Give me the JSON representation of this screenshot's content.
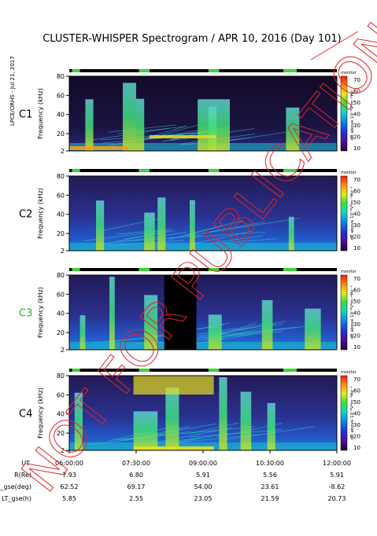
{
  "chart_data": {
    "type": "heatmap",
    "title": "CLUSTER-WHISPER Spectrogram / APR 10, 2016 (Day 101)",
    "side_label": "LPCE/ORHS - Jul 21, 2017",
    "watermark": "NOT FOR PUBLICATION",
    "xlabel": "UT",
    "x_ticks": [
      "06:00:00",
      "07:30:00",
      "09:00:00",
      "10:30:00",
      "12:00:00"
    ],
    "ylabel": "Frequency (kHz)",
    "y_ticks": [
      "2",
      "20",
      "40",
      "60",
      "80"
    ],
    "ylim": [
      2,
      80
    ],
    "colorbar": {
      "label": "dB above 10⁻⁸V²m⁻²Hz⁻¹",
      "header": "monitor",
      "ticks": [
        "10",
        "20",
        "30",
        "40",
        "50",
        "60",
        "70"
      ],
      "range": [
        10,
        70
      ]
    },
    "panels": [
      {
        "name": "C1",
        "color": "#000000"
      },
      {
        "name": "C2",
        "color": "#000000"
      },
      {
        "name": "C3",
        "color": "#2fae2f"
      },
      {
        "name": "C4",
        "color": "#000000"
      }
    ],
    "ephemeris": [
      {
        "label": "R(Re)",
        "values": [
          "7.93",
          "6.80",
          "5.91",
          "5.56",
          "5.91"
        ]
      },
      {
        "label": "Lat_gse(deg)",
        "values": [
          "62.52",
          "69.17",
          "54.00",
          "23.61",
          "-8.62"
        ]
      },
      {
        "label": "LT_gse(h)",
        "values": [
          "5.85",
          "2.55",
          "23.05",
          "21.59",
          "20.73"
        ]
      }
    ]
  }
}
